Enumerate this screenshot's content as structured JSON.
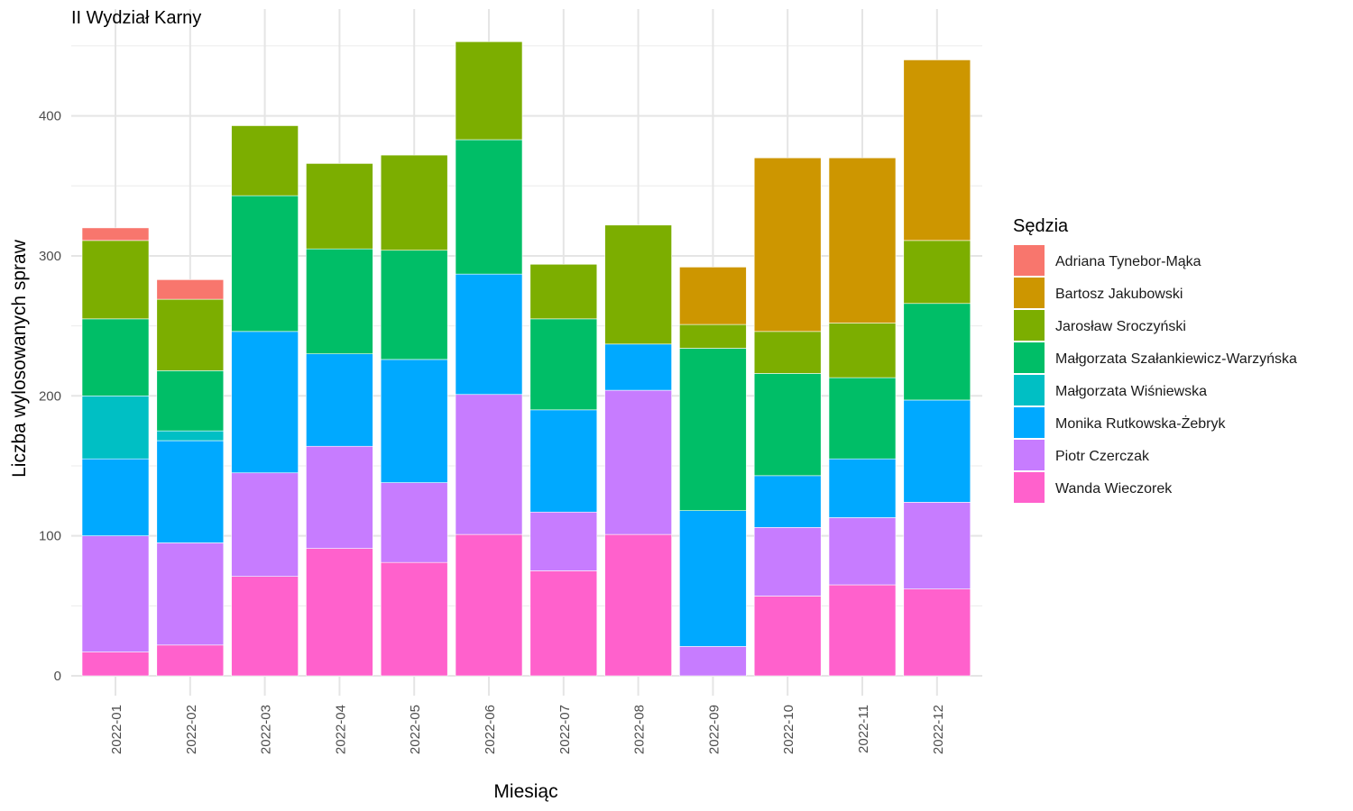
{
  "chart_data": {
    "type": "bar",
    "stacked": true,
    "title": "II Wydział Karny",
    "xlabel": "Miesiąc",
    "ylabel": "Liczba wylosowanych spraw",
    "ylim": [
      0,
      470
    ],
    "yticks": [
      0,
      100,
      200,
      300,
      400
    ],
    "grid": true,
    "legend_title": "Sędzia",
    "legend_position": "right",
    "categories": [
      "2022-01",
      "2022-02",
      "2022-03",
      "2022-04",
      "2022-05",
      "2022-06",
      "2022-07",
      "2022-08",
      "2022-09",
      "2022-10",
      "2022-11",
      "2022-12"
    ],
    "series": [
      {
        "name": "Wanda Wieczorek",
        "color": "#FF61CC",
        "values": [
          17,
          22,
          71,
          91,
          81,
          101,
          75,
          101,
          0,
          57,
          65,
          62
        ]
      },
      {
        "name": "Piotr Czerczak",
        "color": "#C77CFF",
        "values": [
          83,
          73,
          74,
          73,
          57,
          100,
          42,
          103,
          21,
          49,
          48,
          62
        ]
      },
      {
        "name": "Monika Rutkowska-Żebryk",
        "color": "#00A9FF",
        "values": [
          55,
          73,
          101,
          66,
          88,
          86,
          73,
          33,
          97,
          37,
          42,
          73
        ]
      },
      {
        "name": "Małgorzata Wiśniewska",
        "color": "#00BFC4",
        "values": [
          45,
          7,
          0,
          0,
          0,
          0,
          0,
          0,
          0,
          0,
          0,
          0
        ]
      },
      {
        "name": "Małgorzata Szałankiewicz-Warzyńska",
        "color": "#00BE67",
        "values": [
          55,
          43,
          97,
          75,
          78,
          96,
          65,
          0,
          116,
          73,
          58,
          69
        ]
      },
      {
        "name": "Jarosław Sroczyński",
        "color": "#7CAE00",
        "values": [
          56,
          51,
          50,
          61,
          68,
          70,
          39,
          85,
          17,
          30,
          39,
          45
        ]
      },
      {
        "name": "Bartosz Jakubowski",
        "color": "#CD9600",
        "values": [
          0,
          0,
          0,
          0,
          0,
          0,
          0,
          0,
          41,
          124,
          118,
          129
        ]
      },
      {
        "name": "Adriana Tynebor-Mąka",
        "color": "#F8766D",
        "values": [
          9,
          14,
          0,
          0,
          0,
          0,
          0,
          0,
          0,
          0,
          0,
          0
        ]
      }
    ],
    "legend_order": [
      "Adriana Tynebor-Mąka",
      "Bartosz Jakubowski",
      "Jarosław Sroczyński",
      "Małgorzata Szałankiewicz-Warzyńska",
      "Małgorzata Wiśniewska",
      "Monika Rutkowska-Żebryk",
      "Piotr Czerczak",
      "Wanda Wieczorek"
    ]
  }
}
